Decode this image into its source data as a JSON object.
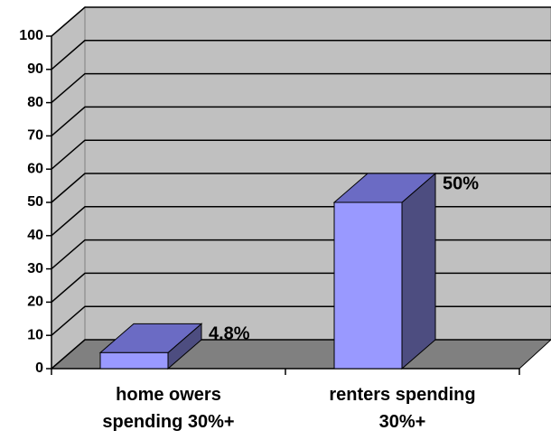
{
  "chart_data": {
    "type": "bar",
    "categories": [
      "home owers spending 30%+",
      "renters spending 30%+"
    ],
    "values": [
      4.8,
      50
    ],
    "value_labels": [
      "4.8%",
      "50%"
    ],
    "color": "#9999ff",
    "ylim": [
      0,
      100
    ],
    "yticks": [
      0,
      10,
      20,
      30,
      40,
      50,
      60,
      70,
      80,
      90,
      100
    ],
    "grid": true
  }
}
